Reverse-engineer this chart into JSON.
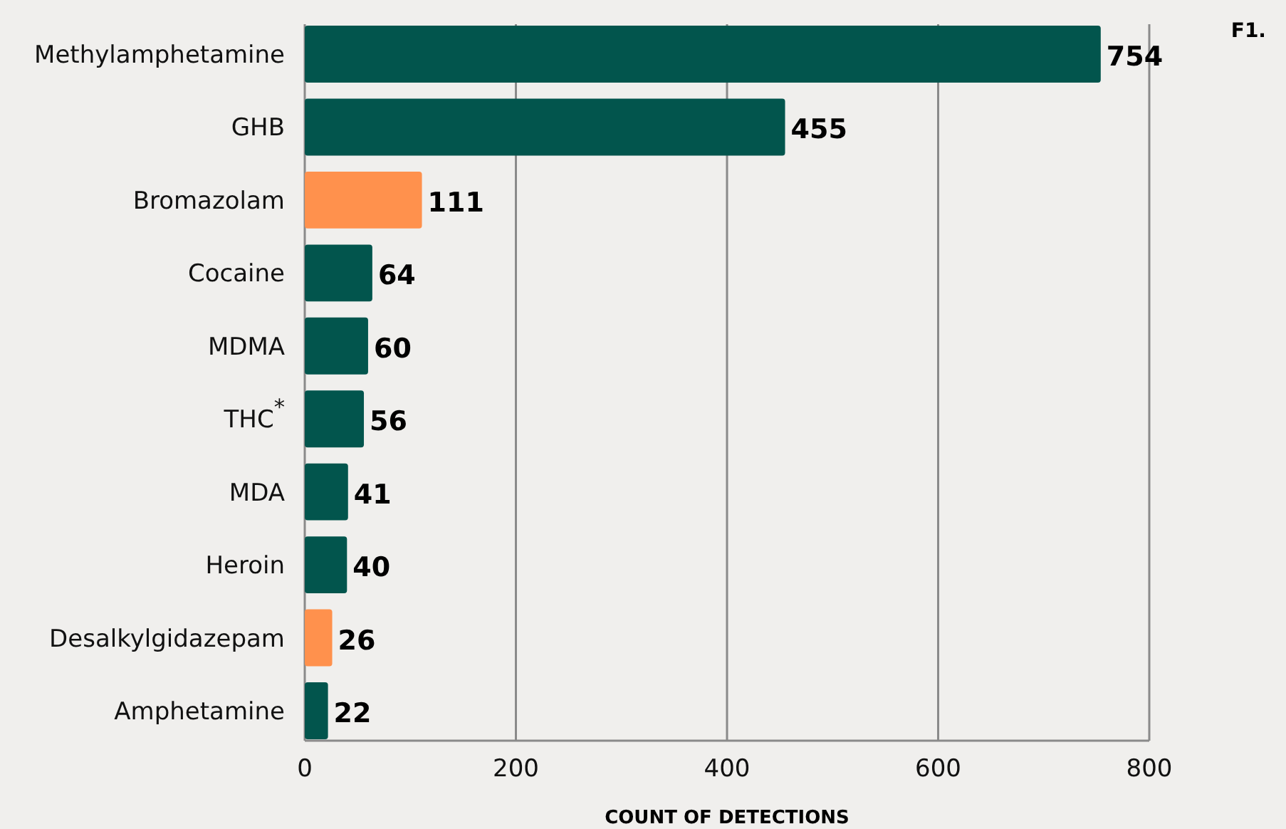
{
  "chart_data": {
    "type": "bar",
    "orientation": "horizontal",
    "xlabel": "COUNT OF DETECTIONS",
    "annotations": [
      "F1."
    ],
    "categories": [
      "Methylamphetamine",
      "GHB",
      "Bromazolam",
      "Cocaine",
      "MDMA",
      "THC$^{*}$",
      "MDA",
      "Heroin",
      "Desalkylgidazepam",
      "Amphetamine"
    ],
    "values": [
      754,
      455,
      111,
      64,
      60,
      56,
      41,
      40,
      26,
      22
    ],
    "colors": [
      "#02554d",
      "#02554d",
      "#ff914d",
      "#02554d",
      "#02554d",
      "#02554d",
      "#02554d",
      "#02554d",
      "#ff914d",
      "#02554d"
    ],
    "xlim": [
      0,
      800
    ],
    "xticks": [
      0,
      200,
      400,
      600,
      800
    ],
    "grid": "x",
    "data_labels": true
  }
}
